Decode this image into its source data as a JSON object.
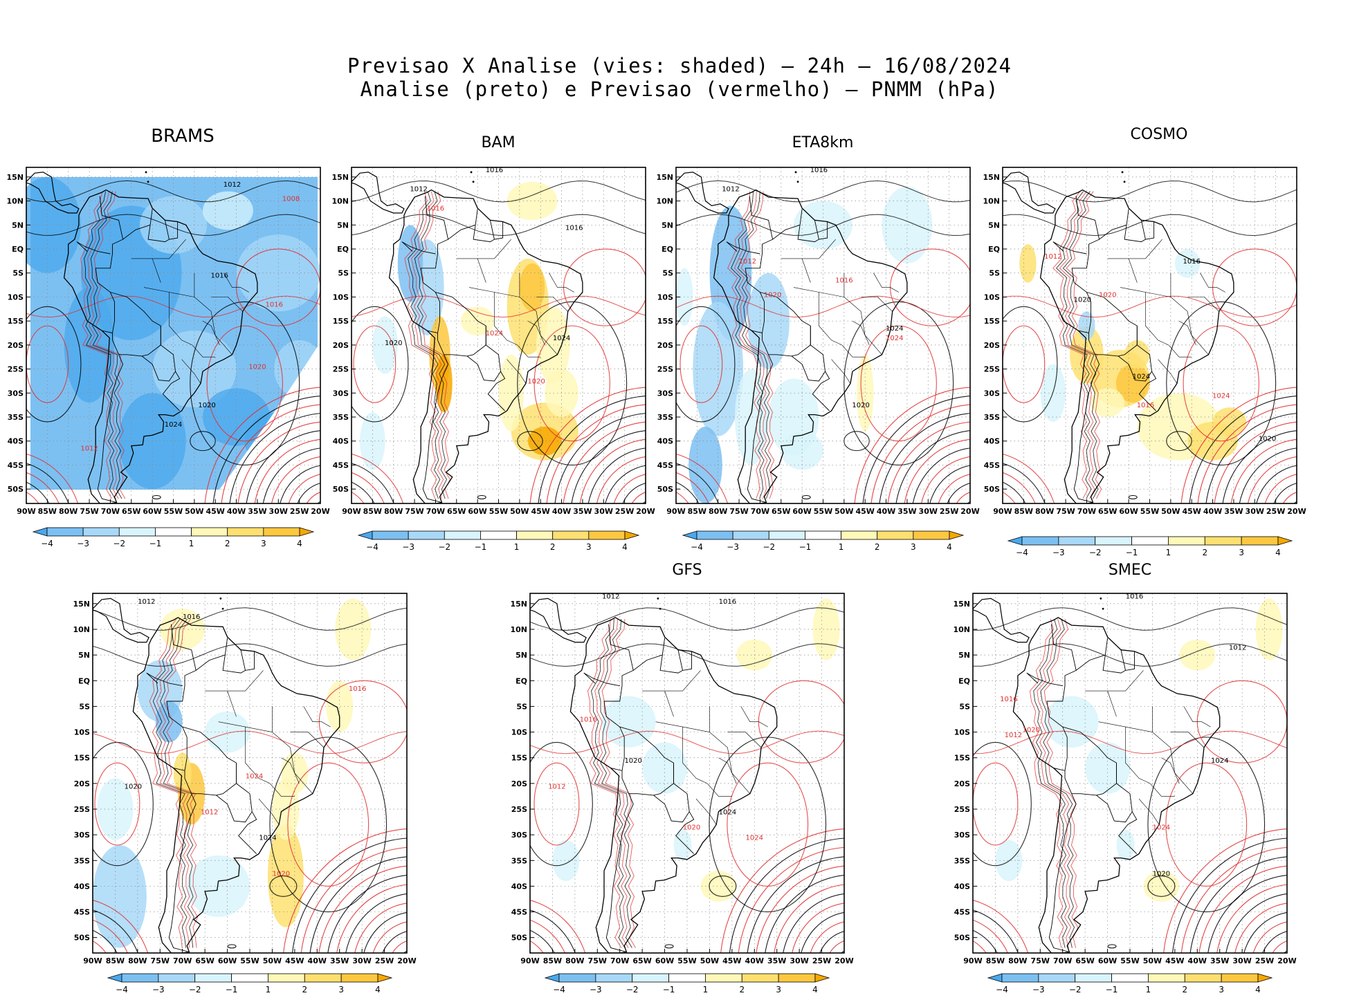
{
  "header": {
    "line1": "Previsao X Analise (vies: shaded) – 24h – 16/08/2024",
    "line2": "Analise (preto) e Previsao (vermelho) – PNMM (hPa)"
  },
  "axes": {
    "lat_labels": [
      "15N",
      "10N",
      "5N",
      "EQ",
      "5S",
      "10S",
      "15S",
      "20S",
      "25S",
      "30S",
      "35S",
      "40S",
      "45S",
      "50S"
    ],
    "lon_labels": [
      "90W",
      "85W",
      "80W",
      "75W",
      "70W",
      "65W",
      "60W",
      "55W",
      "50W",
      "45W",
      "40W",
      "35W",
      "30W",
      "25W",
      "20W"
    ]
  },
  "colorbar": {
    "ticks": [
      "−4",
      "−3",
      "−2",
      "−1",
      "1",
      "2",
      "3",
      "4"
    ],
    "colors": [
      "#4aa8ec",
      "#7cc0f2",
      "#a8d8f8",
      "#d8f4fc",
      "#ffffff",
      "#fff8b8",
      "#fee070",
      "#fdc840",
      "#f6a800"
    ]
  },
  "palette": {
    "analysis_isobar": "#000000",
    "forecast_isobar": "#e03030",
    "grid": "#888888"
  },
  "panels": [
    {
      "title": "BRAMS",
      "bias": "negative_strong",
      "isobar_labels": [
        {
          "text": "1012",
          "kind": "analysis"
        },
        {
          "text": "1008",
          "kind": "forecast"
        },
        {
          "text": "1016",
          "kind": "analysis"
        },
        {
          "text": "1020",
          "kind": "analysis"
        },
        {
          "text": "1024",
          "kind": "analysis"
        },
        {
          "text": "1016",
          "kind": "forecast"
        },
        {
          "text": "1020",
          "kind": "forecast"
        },
        {
          "text": "1012",
          "kind": "forecast"
        }
      ]
    },
    {
      "title": "BAM",
      "bias": "mixed_positive_east",
      "isobar_labels": [
        {
          "text": "1016",
          "kind": "analysis"
        },
        {
          "text": "1012",
          "kind": "analysis"
        },
        {
          "text": "1016",
          "kind": "forecast"
        },
        {
          "text": "1020",
          "kind": "analysis"
        },
        {
          "text": "1024",
          "kind": "forecast"
        },
        {
          "text": "1024",
          "kind": "analysis"
        },
        {
          "text": "1020",
          "kind": "forecast"
        },
        {
          "text": "1016",
          "kind": "analysis"
        }
      ]
    },
    {
      "title": "ETA8km",
      "bias": "negative_west",
      "isobar_labels": [
        {
          "text": "1016",
          "kind": "analysis"
        },
        {
          "text": "1012",
          "kind": "analysis"
        },
        {
          "text": "1020",
          "kind": "analysis"
        },
        {
          "text": "1024",
          "kind": "analysis"
        },
        {
          "text": "1024",
          "kind": "forecast"
        },
        {
          "text": "1016",
          "kind": "forecast"
        },
        {
          "text": "1020",
          "kind": "forecast"
        },
        {
          "text": "1012",
          "kind": "forecast"
        }
      ]
    },
    {
      "title": "COSMO",
      "bias": "positive_south",
      "isobar_labels": [
        {
          "text": "1016",
          "kind": "analysis"
        },
        {
          "text": "1020",
          "kind": "analysis"
        },
        {
          "text": "1024",
          "kind": "analysis"
        },
        {
          "text": "1012",
          "kind": "forecast"
        },
        {
          "text": "1020",
          "kind": "forecast"
        },
        {
          "text": "1024",
          "kind": "forecast"
        },
        {
          "text": "1016",
          "kind": "forecast"
        },
        {
          "text": "1020",
          "kind": "analysis"
        }
      ]
    },
    {
      "title": "",
      "bias": "mixed_andes",
      "isobar_labels": [
        {
          "text": "1012",
          "kind": "analysis"
        },
        {
          "text": "1016",
          "kind": "analysis"
        },
        {
          "text": "1020",
          "kind": "analysis"
        },
        {
          "text": "1024",
          "kind": "analysis"
        },
        {
          "text": "1016",
          "kind": "forecast"
        },
        {
          "text": "1024",
          "kind": "forecast"
        },
        {
          "text": "1020",
          "kind": "forecast"
        },
        {
          "text": "1012",
          "kind": "forecast"
        }
      ]
    },
    {
      "title": "GFS",
      "bias": "weak",
      "isobar_labels": [
        {
          "text": "1012",
          "kind": "analysis"
        },
        {
          "text": "1016",
          "kind": "analysis"
        },
        {
          "text": "1020",
          "kind": "analysis"
        },
        {
          "text": "1024",
          "kind": "analysis"
        },
        {
          "text": "1016",
          "kind": "forecast"
        },
        {
          "text": "1020",
          "kind": "forecast"
        },
        {
          "text": "1024",
          "kind": "forecast"
        },
        {
          "text": "1012",
          "kind": "forecast"
        }
      ]
    },
    {
      "title": "SMEC",
      "bias": "weak",
      "isobar_labels": [
        {
          "text": "1016",
          "kind": "analysis"
        },
        {
          "text": "1012",
          "kind": "analysis"
        },
        {
          "text": "1020",
          "kind": "analysis"
        },
        {
          "text": "1024",
          "kind": "analysis"
        },
        {
          "text": "1016",
          "kind": "forecast"
        },
        {
          "text": "1020",
          "kind": "forecast"
        },
        {
          "text": "1024",
          "kind": "forecast"
        },
        {
          "text": "1012",
          "kind": "forecast"
        }
      ]
    }
  ]
}
